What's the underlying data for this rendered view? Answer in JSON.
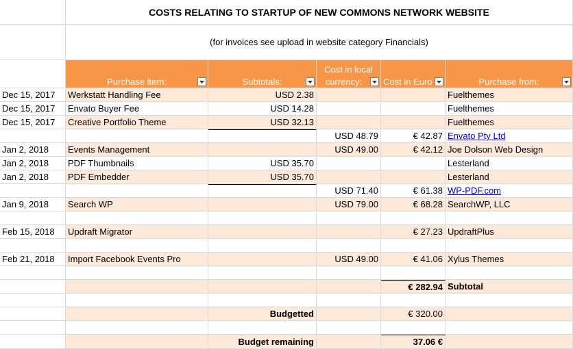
{
  "title": "COSTS RELATING TO STARTUP OF NEW COMMONS NETWORK WEBSITE",
  "subtitle": "(for invoices see upload in website category Financials)",
  "headers": {
    "item": "Purchase item:",
    "subtotal": "Subtotals:",
    "local_line1": "Cost in local",
    "local_line2": "currency:",
    "euro": "Cost in Euro",
    "from": "Purchase from:"
  },
  "rows": [
    {
      "date": "Dec 15, 2017",
      "item": "Werkstatt Handling Fee",
      "subtotal": "USD 2.38",
      "local": "",
      "euro": "",
      "from": "Fuelthemes"
    },
    {
      "date": "Dec 15, 2017",
      "item": "Envato Buyer Fee",
      "subtotal": "USD 14.28",
      "local": "",
      "euro": "",
      "from": "Fuelthemes"
    },
    {
      "date": "Dec 15, 2017",
      "item": "Creative Portfolio Theme",
      "subtotal": "USD 32.13",
      "local": "",
      "euro": "",
      "from": "Fuelthemes"
    },
    {
      "date": "",
      "item": "",
      "subtotal": "",
      "local": "USD 48.79",
      "euro": "€ 42.87",
      "from": "Envato Pty Ltd"
    },
    {
      "date": "Jan 2, 2018",
      "item": "Events Management",
      "subtotal": "",
      "local": "USD 49.00",
      "euro": "€ 42.12",
      "from": "Joe Dolson Web Design"
    },
    {
      "date": "Jan 2, 2018",
      "item": "PDF Thumbnails",
      "subtotal": "USD 35.70",
      "local": "",
      "euro": "",
      "from": "Lesterland"
    },
    {
      "date": "Jan 2, 2018",
      "item": "PDF Embedder",
      "subtotal": "USD 35.70",
      "local": "",
      "euro": "",
      "from": "Lesterland"
    },
    {
      "date": "",
      "item": "",
      "subtotal": "",
      "local": "USD 71.40",
      "euro": "€ 61.38",
      "from": "WP-PDF.com"
    },
    {
      "date": "Jan 9, 2018",
      "item": "Search WP",
      "subtotal": "",
      "local": "USD 79.00",
      "euro": "€ 68.28",
      "from": "SearchWP, LLC"
    },
    {
      "date": "",
      "item": "",
      "subtotal": "",
      "local": "",
      "euro": "",
      "from": ""
    },
    {
      "date": "Feb 15, 2018",
      "item": "Updraft Migrator",
      "subtotal": "",
      "local": "",
      "euro": "€ 27.23",
      "from": "UpdraftPlus"
    },
    {
      "date": "",
      "item": "",
      "subtotal": "",
      "local": "",
      "euro": "",
      "from": ""
    },
    {
      "date": "Feb 21, 2018",
      "item": "Import Facebook Events Pro",
      "subtotal": "",
      "local": "USD 49.00",
      "euro": "€ 41.06",
      "from": "Xylus Themes"
    },
    {
      "date": "",
      "item": "",
      "subtotal": "",
      "local": "",
      "euro": "",
      "from": ""
    },
    {
      "date": "",
      "item": "",
      "subtotal": "",
      "local": "",
      "euro": "€ 282.94",
      "from": "Subtotal"
    },
    {
      "date": "",
      "item": "",
      "subtotal": "",
      "local": "",
      "euro": "",
      "from": ""
    },
    {
      "date": "",
      "item": "",
      "subtotal": "Budgetted",
      "local": "",
      "euro": "€ 320.00",
      "from": ""
    },
    {
      "date": "",
      "item": "",
      "subtotal": "",
      "local": "",
      "euro": "",
      "from": ""
    },
    {
      "date": "",
      "item": "",
      "subtotal": "Budget remaining",
      "local": "",
      "euro": "37.06 €",
      "from": ""
    }
  ]
}
